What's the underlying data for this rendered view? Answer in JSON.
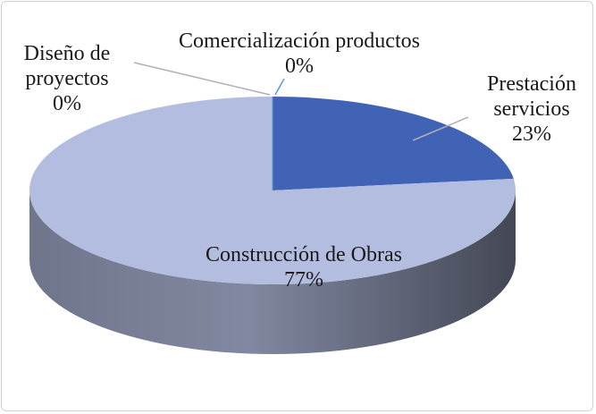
{
  "chart_data": {
    "type": "pie3d",
    "categories": [
      "Prestación servicios",
      "Construcción de Obras",
      "Diseño de proyectos",
      "Comercialización productos"
    ],
    "values": [
      23,
      77,
      0,
      0
    ],
    "value_labels": [
      "23%",
      "77%",
      "0%",
      "0%"
    ],
    "colors": [
      "#4163b5",
      "#b3bde0",
      "#b3bde0",
      "#5a9bd5"
    ]
  }
}
